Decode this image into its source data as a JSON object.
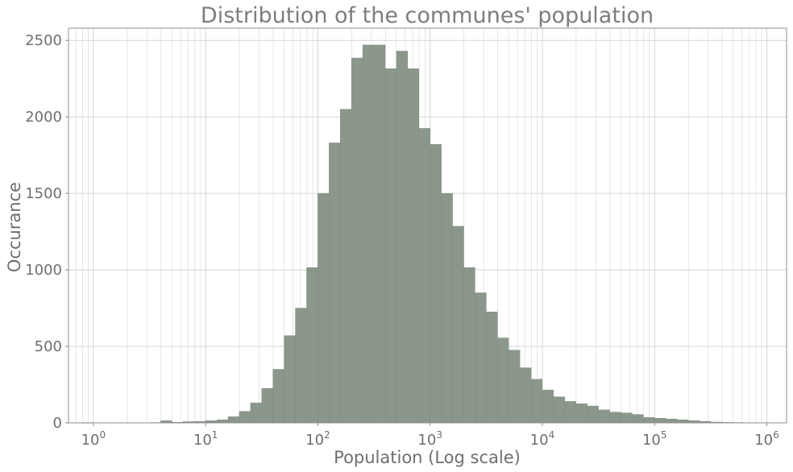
{
  "chart_data": {
    "type": "bar",
    "title": "Distribution of the communes' population",
    "xlabel": "Population (Log scale)",
    "ylabel": "Occurance",
    "x_scale": "log",
    "xlim": [
      0.6,
      1500000
    ],
    "ylim": [
      0,
      2580
    ],
    "x_ticks": [
      {
        "base": "10",
        "exp": "0",
        "value": 1
      },
      {
        "base": "10",
        "exp": "1",
        "value": 10
      },
      {
        "base": "10",
        "exp": "2",
        "value": 100
      },
      {
        "base": "10",
        "exp": "3",
        "value": 1000
      },
      {
        "base": "10",
        "exp": "4",
        "value": 10000
      },
      {
        "base": "10",
        "exp": "5",
        "value": 100000
      },
      {
        "base": "10",
        "exp": "6",
        "value": 1000000
      }
    ],
    "y_ticks": [
      0,
      500,
      1000,
      1500,
      2000,
      2500
    ],
    "grid": true,
    "bar_color": "#8c978b",
    "bin_edges": [
      0.79,
      1.0,
      1.26,
      1.58,
      2.0,
      2.51,
      3.16,
      3.98,
      5.01,
      6.31,
      7.94,
      10.0,
      12.59,
      15.85,
      19.95,
      25.12,
      31.62,
      39.81,
      50.12,
      63.1,
      79.43,
      100.0,
      125.89,
      158.49,
      199.53,
      251.19,
      316.23,
      398.11,
      501.19,
      630.96,
      794.33,
      1000.0,
      1258.93,
      1584.89,
      1995.26,
      2511.89,
      3162.28,
      3981.07,
      5011.87,
      6309.57,
      7943.28,
      10000.0,
      12589.25,
      15848.93,
      19952.62,
      25118.86,
      31622.78,
      39810.72,
      50118.72,
      63095.73,
      79432.82,
      100000.0,
      125892.54,
      158489.32,
      199526.23,
      251188.64,
      316227.77,
      398107.17,
      501187.23,
      630957.34,
      794328.23,
      1000000.0
    ],
    "counts": [
      2,
      0,
      1,
      0,
      0,
      1,
      2,
      14,
      4,
      8,
      9,
      14,
      20,
      40,
      75,
      130,
      225,
      350,
      570,
      750,
      1015,
      1500,
      1830,
      2050,
      2385,
      2470,
      2470,
      2315,
      2430,
      2315,
      1925,
      1820,
      1500,
      1285,
      1015,
      850,
      725,
      555,
      475,
      360,
      285,
      215,
      170,
      140,
      125,
      110,
      85,
      70,
      65,
      55,
      35,
      30,
      25,
      20,
      15,
      10,
      5,
      3,
      2,
      1,
      1
    ]
  }
}
